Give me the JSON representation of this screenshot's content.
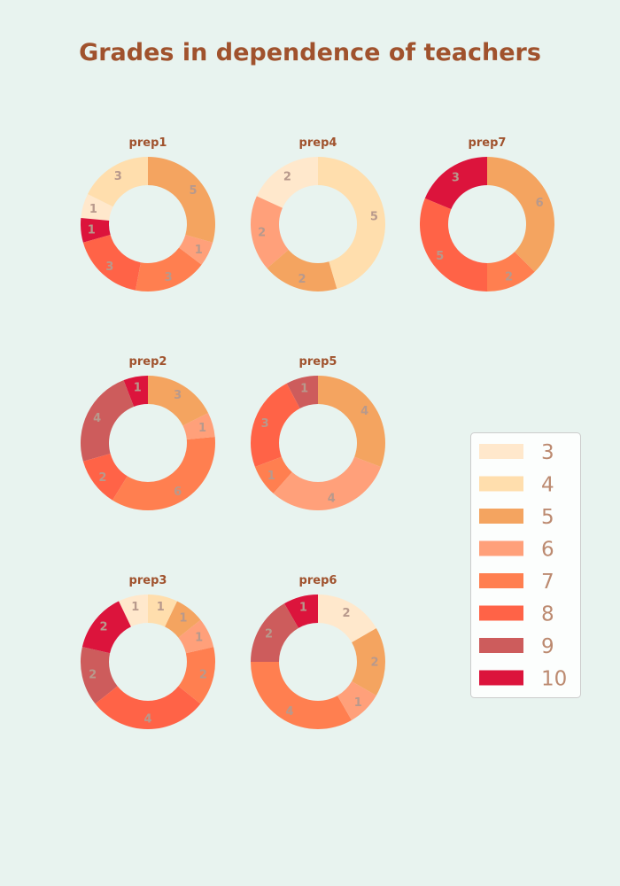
{
  "chart_data": {
    "type": "pie",
    "style": "donut",
    "title": "Grades in dependence of teachers",
    "colors": {
      "3": "#ffe8cc",
      "4": "#ffdead",
      "5": "#f4a460",
      "6": "#ffa07a",
      "7": "#ff7f50",
      "8": "#ff6347",
      "9": "#cd5c5c",
      "10": "#dc143c",
      "title": "#a0522d",
      "value_label": "#b8998c",
      "legend_text": "#bc8a70"
    },
    "legend": {
      "position": "right",
      "entries": [
        "3",
        "4",
        "5",
        "6",
        "7",
        "8",
        "9",
        "10"
      ]
    },
    "charts": [
      {
        "title": "prep1",
        "grades": [
          "4",
          "3",
          "10",
          "8",
          "7",
          "6",
          "5"
        ],
        "values": [
          3,
          1,
          1,
          3,
          3,
          1,
          5
        ]
      },
      {
        "title": "prep4",
        "grades": [
          "3",
          "6",
          "5",
          "4"
        ],
        "values": [
          2,
          2,
          2,
          5
        ]
      },
      {
        "title": "prep7",
        "grades": [
          "10",
          "8",
          "7",
          "5"
        ],
        "values": [
          3,
          5,
          2,
          6
        ]
      },
      {
        "title": "prep2",
        "grades": [
          "10",
          "9",
          "8",
          "7",
          "6",
          "5"
        ],
        "values": [
          1,
          4,
          2,
          6,
          1,
          3
        ]
      },
      {
        "title": "prep5",
        "grades": [
          "9",
          "8",
          "7",
          "6",
          "5"
        ],
        "values": [
          1,
          3,
          1,
          4,
          4
        ]
      },
      {
        "title": "prep3",
        "grades": [
          "3",
          "10",
          "9",
          "8",
          "7",
          "6",
          "5",
          "4"
        ],
        "values": [
          1,
          2,
          2,
          4,
          2,
          1,
          1,
          1
        ]
      },
      {
        "title": "prep6",
        "grades": [
          "10",
          "9",
          "7",
          "6",
          "5",
          "3"
        ],
        "values": [
          1,
          2,
          4,
          1,
          2,
          2
        ]
      }
    ]
  }
}
